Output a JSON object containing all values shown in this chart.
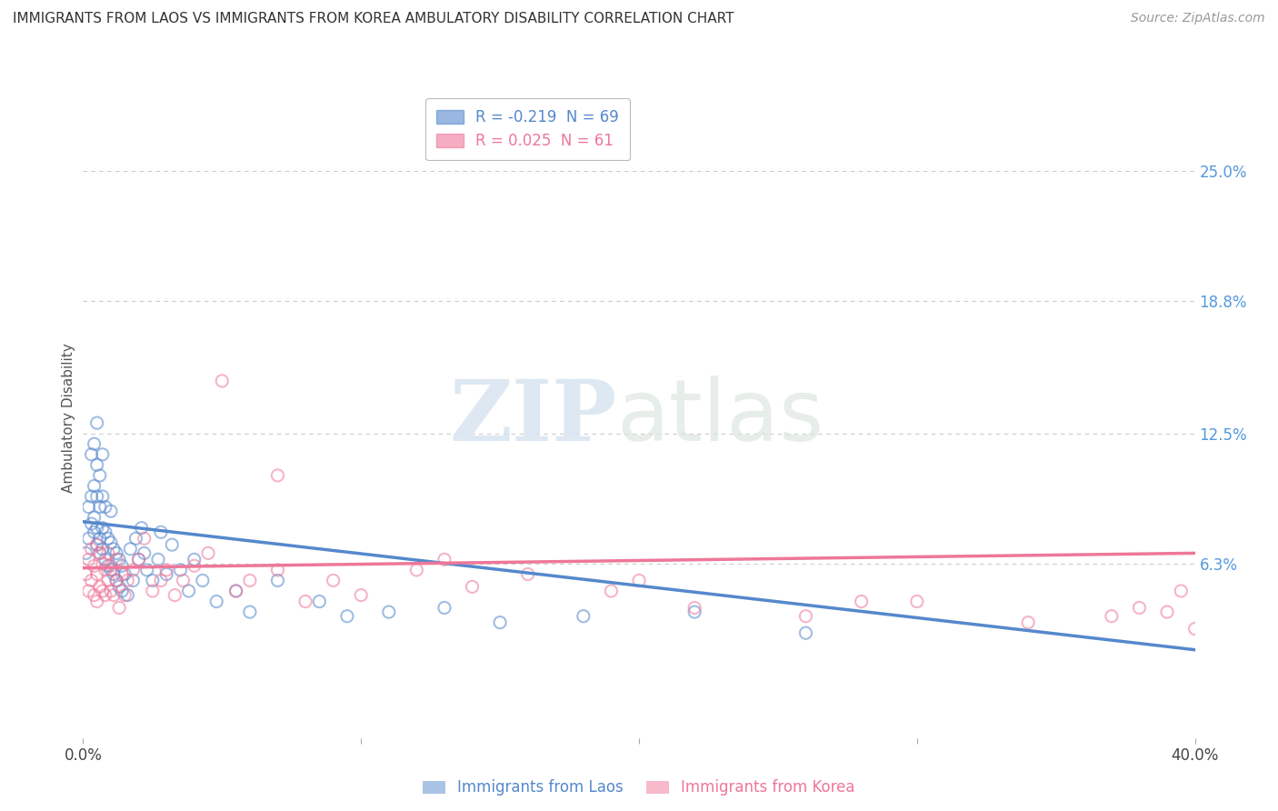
{
  "title": "IMMIGRANTS FROM LAOS VS IMMIGRANTS FROM KOREA AMBULATORY DISABILITY CORRELATION CHART",
  "source": "Source: ZipAtlas.com",
  "ylabel": "Ambulatory Disability",
  "ytick_labels": [
    "25.0%",
    "18.8%",
    "12.5%",
    "6.3%"
  ],
  "ytick_values": [
    0.25,
    0.188,
    0.125,
    0.063
  ],
  "xmin": 0.0,
  "xmax": 0.4,
  "ymin": -0.02,
  "ymax": 0.285,
  "laos_color": "#5588CC",
  "korea_color": "#EE7799",
  "laos_R": -0.219,
  "laos_N": 69,
  "korea_R": 0.025,
  "korea_N": 61,
  "laos_line_x0": 0.0,
  "laos_line_y0": 0.083,
  "laos_line_x1": 0.4,
  "laos_line_y1": 0.022,
  "korea_line_x0": 0.0,
  "korea_line_y0": 0.061,
  "korea_line_x1": 0.4,
  "korea_line_y1": 0.068,
  "laos_scatter_x": [
    0.001,
    0.002,
    0.002,
    0.003,
    0.003,
    0.003,
    0.004,
    0.004,
    0.004,
    0.004,
    0.005,
    0.005,
    0.005,
    0.005,
    0.005,
    0.006,
    0.006,
    0.006,
    0.006,
    0.007,
    0.007,
    0.007,
    0.007,
    0.008,
    0.008,
    0.008,
    0.009,
    0.009,
    0.01,
    0.01,
    0.01,
    0.011,
    0.011,
    0.012,
    0.012,
    0.013,
    0.013,
    0.014,
    0.014,
    0.015,
    0.016,
    0.017,
    0.018,
    0.019,
    0.02,
    0.021,
    0.022,
    0.023,
    0.025,
    0.027,
    0.028,
    0.03,
    0.032,
    0.035,
    0.038,
    0.04,
    0.043,
    0.048,
    0.055,
    0.06,
    0.07,
    0.085,
    0.095,
    0.11,
    0.13,
    0.15,
    0.18,
    0.22,
    0.26
  ],
  "laos_scatter_y": [
    0.068,
    0.075,
    0.09,
    0.082,
    0.095,
    0.115,
    0.078,
    0.085,
    0.1,
    0.12,
    0.072,
    0.08,
    0.095,
    0.11,
    0.13,
    0.068,
    0.075,
    0.09,
    0.105,
    0.07,
    0.08,
    0.095,
    0.115,
    0.065,
    0.078,
    0.09,
    0.062,
    0.075,
    0.06,
    0.073,
    0.088,
    0.058,
    0.07,
    0.055,
    0.068,
    0.052,
    0.065,
    0.05,
    0.062,
    0.058,
    0.048,
    0.07,
    0.055,
    0.075,
    0.065,
    0.08,
    0.068,
    0.06,
    0.055,
    0.065,
    0.078,
    0.058,
    0.072,
    0.06,
    0.05,
    0.065,
    0.055,
    0.045,
    0.05,
    0.04,
    0.055,
    0.045,
    0.038,
    0.04,
    0.042,
    0.035,
    0.038,
    0.04,
    0.03
  ],
  "korea_scatter_x": [
    0.001,
    0.002,
    0.002,
    0.003,
    0.003,
    0.004,
    0.004,
    0.005,
    0.005,
    0.005,
    0.006,
    0.006,
    0.007,
    0.007,
    0.008,
    0.008,
    0.009,
    0.009,
    0.01,
    0.01,
    0.011,
    0.012,
    0.012,
    0.013,
    0.014,
    0.015,
    0.016,
    0.018,
    0.02,
    0.022,
    0.025,
    0.028,
    0.03,
    0.033,
    0.036,
    0.04,
    0.045,
    0.05,
    0.055,
    0.06,
    0.07,
    0.08,
    0.09,
    0.1,
    0.12,
    0.14,
    0.16,
    0.19,
    0.22,
    0.26,
    0.3,
    0.34,
    0.38,
    0.395,
    0.07,
    0.13,
    0.2,
    0.28,
    0.37,
    0.39,
    0.4
  ],
  "korea_scatter_y": [
    0.058,
    0.05,
    0.065,
    0.055,
    0.07,
    0.048,
    0.062,
    0.045,
    0.058,
    0.072,
    0.052,
    0.068,
    0.05,
    0.063,
    0.048,
    0.06,
    0.055,
    0.068,
    0.05,
    0.062,
    0.048,
    0.055,
    0.065,
    0.042,
    0.058,
    0.048,
    0.055,
    0.06,
    0.065,
    0.075,
    0.05,
    0.055,
    0.06,
    0.048,
    0.055,
    0.062,
    0.068,
    0.15,
    0.05,
    0.055,
    0.06,
    0.045,
    0.055,
    0.048,
    0.06,
    0.052,
    0.058,
    0.05,
    0.042,
    0.038,
    0.045,
    0.035,
    0.042,
    0.05,
    0.105,
    0.065,
    0.055,
    0.045,
    0.038,
    0.04,
    0.032
  ],
  "watermark_zip": "ZIP",
  "watermark_atlas": "atlas",
  "background_color": "#ffffff",
  "grid_color": "#cccccc",
  "legend_box_color": "#ffffff",
  "legend_edge_color": "#bbbbbb",
  "ytick_color": "#5599DD"
}
